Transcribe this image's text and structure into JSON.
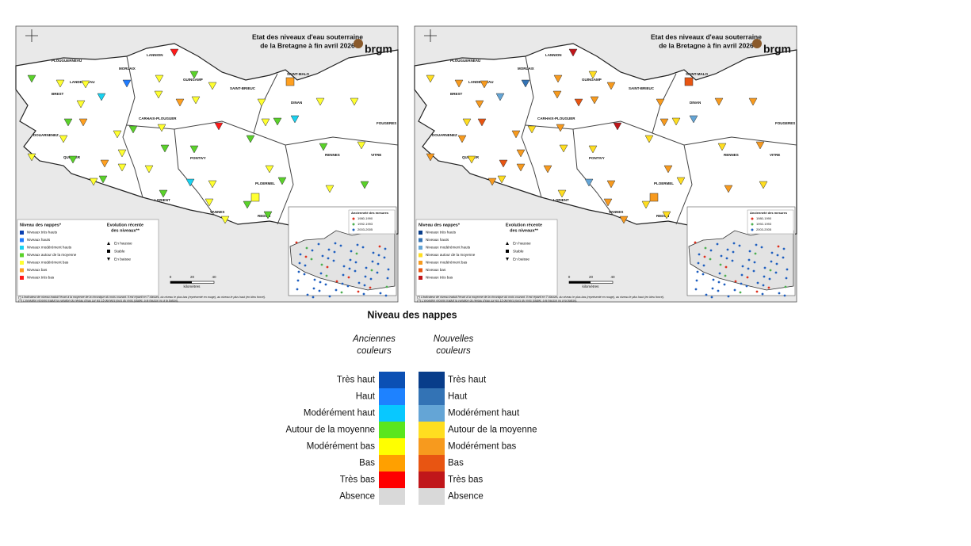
{
  "maps": [
    {
      "title_lines": [
        "Etat des niveaux d'eau souterraine",
        "de la Bretagne à fin avril 2026"
      ],
      "logo": "brgm",
      "cities": [
        "PLOUGUERNEAU",
        "MORLAIX",
        "LANNION",
        "LANDERNEAU",
        "GUINGAMP",
        "SAINT-MALO",
        "BREST",
        "SAINT-BRIEUC",
        "DINAN",
        "CARHAIX-PLOUGUER",
        "FOUGERES",
        "DOUARNENEZ",
        "QUIMPER",
        "PONTIVY",
        "RENNES",
        "VITRE",
        "PLOERMEL",
        "LORIENT",
        "VANNES",
        "REDON"
      ],
      "legend": {
        "title": "Niveau des nappes*",
        "levels": [
          "Niveaux très hauts",
          "Niveaux hauts",
          "Niveaux modérément hauts",
          "Niveaux autour de la moyenne",
          "Niveaux modérément bas",
          "Niveaux bas",
          "Niveaux très bas"
        ],
        "colors": [
          "#0a3fb0",
          "#1e7bff",
          "#19d2f0",
          "#5ad22a",
          "#ffff30",
          "#ffa020",
          "#ff1a1a"
        ],
        "evolution_title": [
          "Evolution récente",
          "des niveaux**"
        ],
        "evolution": [
          "En hausse",
          "Stable",
          "En baisse"
        ]
      },
      "inset": {
        "title": "Ancienneté des mesures",
        "periods": [
          "1980-1990",
          "1992-1993",
          "2003-2005"
        ]
      },
      "scale": {
        "ticks": [
          "0",
          "20",
          "40"
        ],
        "unit": "kilomètres"
      },
      "notes": [
        "(*) L'indicateur de niveau traduit l'écart à la moyenne de la chronique du mois courant. Il est réparti en 7 classes, du niveau le plus bas (représenté en rouge), au niveau le plus haut (en bleu foncé).",
        "(**) L'évolution récente traduit la variation du niveau d'eau sur les 15 derniers jours du mois (stable, à la hausse ou à la baisse)."
      ]
    },
    {
      "title_lines": [
        "Etat des niveaux d'eau souterraine",
        "de la Bretagne à fin avril 2026"
      ],
      "logo": "brgm",
      "cities": [
        "PLOUGUERNEAU",
        "MORLAIX",
        "LANNION",
        "LANDERNEAU",
        "GUINGAMP",
        "SAINT-MALO",
        "BREST",
        "SAINT-BRIEUC",
        "DINAN",
        "CARHAIX-PLOUGUER",
        "FOUGERES",
        "DOUARNENEZ",
        "QUIMPER",
        "PONTIVY",
        "RENNES",
        "VITRE",
        "PLOERMEL",
        "LORIENT",
        "VANNES",
        "REDON"
      ],
      "legend": {
        "title": "Niveau des nappes*",
        "levels": [
          "Niveaux très hauts",
          "Niveaux hauts",
          "Niveaux modérément hauts",
          "Niveaux autour de la moyenne",
          "Niveaux modérément bas",
          "Niveaux bas",
          "Niveaux très bas"
        ],
        "colors": [
          "#083d8a",
          "#3373b5",
          "#64a5d6",
          "#ffde20",
          "#f79a1e",
          "#e85512",
          "#c0161a"
        ],
        "evolution_title": [
          "Evolution récente",
          "des niveaux**"
        ],
        "evolution": [
          "En hausse",
          "Stable",
          "En baisse"
        ]
      },
      "inset": {
        "title": "Ancienneté des mesures",
        "periods": [
          "1980-1990",
          "1992-1993",
          "2003-2005"
        ]
      },
      "scale": {
        "ticks": [
          "0",
          "20",
          "40"
        ],
        "unit": "kilomètres"
      },
      "notes": [
        "(*) L'indicateur de niveau traduit l'écart à la moyenne de la chronique du mois courant. Il est réparti en 7 classes, du niveau le plus bas (représenté en rouge), au niveau le plus haut (en bleu foncé).",
        "(**) L'évolution récente traduit la variation du niveau d'eau sur les 15 derniers jours du mois (stable, à la hausse ou à la baisse)."
      ]
    }
  ],
  "comparison": {
    "title": "Niveau des nappes",
    "old_header": [
      "Anciennes",
      "couleurs"
    ],
    "new_header": [
      "Nouvelles",
      "couleurs"
    ],
    "levels": [
      {
        "label": "Très haut",
        "old_color": "#0b50b4",
        "new_color": "#083d8a"
      },
      {
        "label": "Haut",
        "old_color": "#1e82ff",
        "new_color": "#3373b5"
      },
      {
        "label": "Modérément haut",
        "old_color": "#08c8ff",
        "new_color": "#64a5d6"
      },
      {
        "label": "Autour de la moyenne",
        "old_color": "#5ae61e",
        "new_color": "#ffde20"
      },
      {
        "label": "Modérément bas",
        "old_color": "#ffff00",
        "new_color": "#f79a1e"
      },
      {
        "label": "Bas",
        "old_color": "#ffa000",
        "new_color": "#e85512"
      },
      {
        "label": "Très bas",
        "old_color": "#ff0000",
        "new_color": "#c0161a"
      },
      {
        "label": "Absence",
        "old_color": "#d9d9d9",
        "new_color": "#d9d9d9"
      }
    ]
  }
}
